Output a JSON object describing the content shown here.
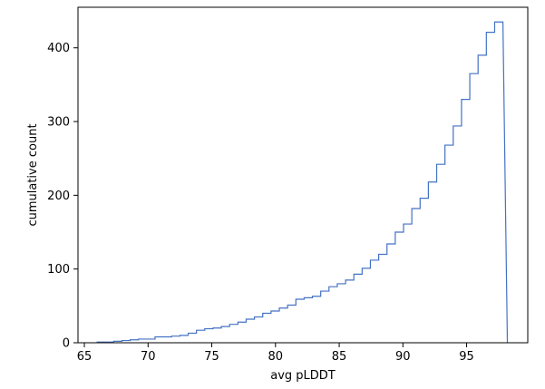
{
  "chart_data": {
    "type": "line",
    "style": "step-histogram-cumulative",
    "title": "",
    "xlabel": "avg pLDDT",
    "ylabel": "cumulative count",
    "xlim": [
      64.5,
      99.8
    ],
    "ylim": [
      0,
      455
    ],
    "xticks": [
      65,
      70,
      75,
      80,
      85,
      90,
      95
    ],
    "yticks": [
      0,
      100,
      200,
      300,
      400
    ],
    "grid": false,
    "legend": "none",
    "line_color": "#4472c4",
    "bin_edges": [
      66.0,
      66.65,
      67.3,
      67.95,
      68.6,
      69.25,
      69.9,
      70.55,
      71.2,
      71.85,
      72.5,
      73.15,
      73.8,
      74.45,
      75.1,
      75.75,
      76.4,
      77.05,
      77.7,
      78.35,
      79.0,
      79.65,
      80.3,
      80.95,
      81.6,
      82.25,
      82.9,
      83.55,
      84.2,
      84.85,
      85.5,
      86.15,
      86.8,
      87.45,
      88.1,
      88.75,
      89.4,
      90.05,
      90.7,
      91.35,
      92.0,
      92.65,
      93.3,
      93.95,
      94.6,
      95.25,
      95.9,
      96.55,
      97.2,
      97.85
    ],
    "cumulative_counts": [
      1,
      1,
      2,
      3,
      4,
      5,
      5,
      8,
      8,
      9,
      10,
      13,
      17,
      19,
      20,
      22,
      25,
      28,
      32,
      35,
      40,
      43,
      47,
      51,
      59,
      61,
      63,
      70,
      76,
      80,
      85,
      93,
      101,
      112,
      120,
      134,
      150,
      161,
      182,
      196,
      218,
      242,
      268,
      294,
      330,
      365,
      390,
      421,
      435
    ],
    "x_end": 98.2
  }
}
